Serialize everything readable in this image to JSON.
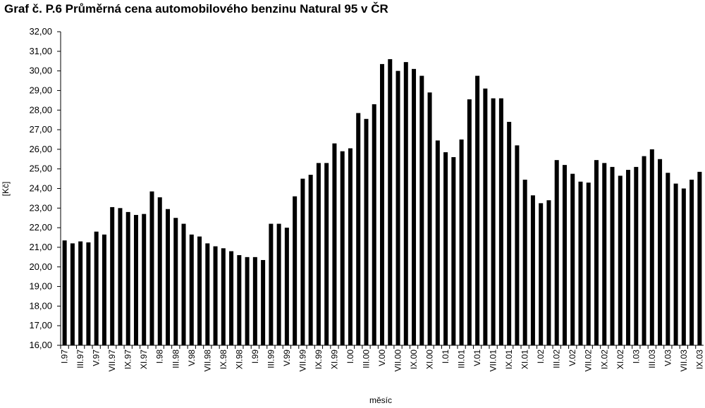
{
  "chart_data": {
    "type": "bar",
    "title": "Graf č. P.6 Průměrná cena automobilového benzinu Natural 95 v ČR",
    "x_label": "měsíc",
    "y_label": "[Kč]",
    "color": "#000000",
    "grid": false,
    "categories": [
      "I.97",
      null,
      "III.97",
      null,
      "V.97",
      null,
      "VII.97",
      null,
      "IX.97",
      null,
      "XI.97",
      null,
      "I.98",
      null,
      "III.98",
      null,
      "V.98",
      null,
      "VII.98",
      null,
      "IX.98",
      null,
      "XI.98",
      null,
      "I.99",
      null,
      "III.99",
      null,
      "V.99",
      null,
      "VII.99",
      null,
      "IX.99",
      null,
      "XI.99",
      null,
      "I.00",
      null,
      "III.00",
      null,
      "V.00",
      null,
      "VII.00",
      null,
      "IX.00",
      null,
      "XI.00",
      null,
      "I.01",
      null,
      "III.01",
      null,
      "V.01",
      null,
      "VII.01",
      null,
      "IX.01",
      null,
      "XI.01",
      null,
      "I.02",
      null,
      "III.02",
      null,
      "V.02",
      null,
      "VII.02",
      null,
      "IX.02",
      null,
      "XI.02",
      null,
      "I.03",
      null,
      "III.03",
      null,
      "V.03",
      null,
      "VII.03",
      null,
      "IX.03"
    ],
    "values": [
      21.35,
      21.2,
      21.3,
      21.25,
      21.8,
      21.65,
      23.05,
      23.0,
      22.8,
      22.65,
      22.7,
      23.85,
      23.55,
      22.95,
      22.5,
      22.2,
      21.65,
      21.55,
      21.2,
      21.05,
      20.95,
      20.8,
      20.6,
      20.5,
      20.5,
      20.35,
      22.2,
      22.2,
      22.0,
      23.6,
      24.5,
      24.7,
      25.3,
      25.3,
      26.3,
      25.9,
      26.05,
      27.85,
      27.55,
      28.3,
      30.35,
      30.6,
      30.0,
      30.45,
      30.1,
      29.75,
      28.9,
      26.45,
      25.85,
      25.6,
      26.5,
      28.55,
      29.75,
      29.1,
      28.6,
      28.6,
      27.4,
      26.2,
      24.45,
      23.65,
      23.25,
      23.4,
      25.45,
      25.2,
      24.75,
      24.35,
      24.3,
      25.45,
      25.3,
      25.1,
      24.65,
      24.95,
      25.1,
      25.65,
      26.0,
      25.5,
      24.8,
      24.25,
      24.0,
      24.45,
      24.85
    ],
    "ylim": [
      16,
      32
    ],
    "yticks": [
      {
        "value": 16,
        "label": "16,00"
      },
      {
        "value": 17,
        "label": "17,00"
      },
      {
        "value": 18,
        "label": "18,00"
      },
      {
        "value": 19,
        "label": "19,00"
      },
      {
        "value": 20,
        "label": "20,00"
      },
      {
        "value": 21,
        "label": "21,00"
      },
      {
        "value": 22,
        "label": "22,00"
      },
      {
        "value": 23,
        "label": "23,00"
      },
      {
        "value": 24,
        "label": "24,00"
      },
      {
        "value": 25,
        "label": "25,00"
      },
      {
        "value": 26,
        "label": "26,00"
      },
      {
        "value": 27,
        "label": "27,00"
      },
      {
        "value": 28,
        "label": "28,00"
      },
      {
        "value": 29,
        "label": "29,00"
      },
      {
        "value": 30,
        "label": "30,00"
      },
      {
        "value": 31,
        "label": "31,00"
      },
      {
        "value": 32,
        "label": "32,00"
      }
    ]
  }
}
